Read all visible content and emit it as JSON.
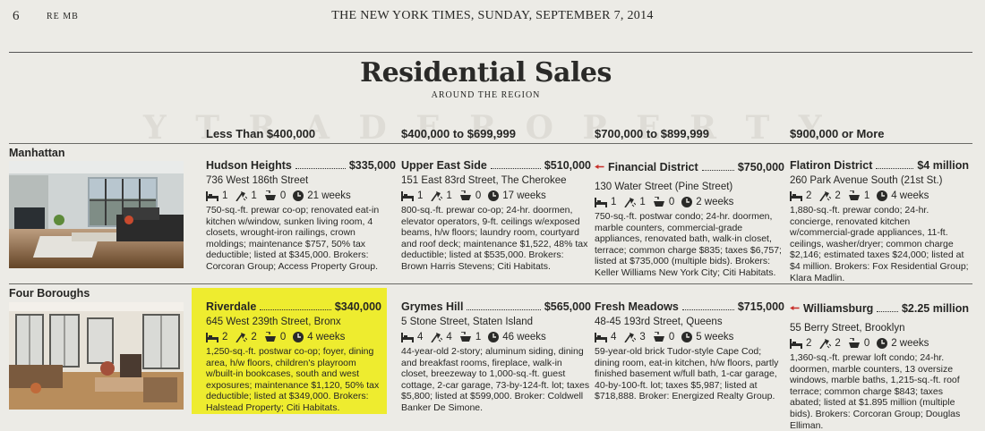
{
  "masthead": {
    "page_number": "6",
    "edition": "RE  MB",
    "dateline": "THE NEW YORK TIMES, SUNDAY, SEPTEMBER 7, 2014"
  },
  "section": {
    "title": "Residential Sales",
    "subtitle": "AROUND THE REGION",
    "watermark": "Y  T  R  A  D  E  R  O  P  E  R  T  Y"
  },
  "columns": [
    "Less Than $400,000",
    "$400,000 to $699,999",
    "$700,000 to $899,999",
    "$900,000 or More"
  ],
  "colors": {
    "highlight": "#eeec2f",
    "arrow": "#c8302a"
  },
  "regions": [
    {
      "name": "Manhattan",
      "listings": [
        {
          "neighborhood": "Hudson Heights",
          "price": "$335,000",
          "address": "736 West 186th Street",
          "beds": "1",
          "baths": "1",
          "half_baths": "0",
          "weeks": "21 weeks",
          "description": "750-sq.-ft. prewar co-op; renovated eat-in kitchen w/window, sunken living room, 4 closets, wrought-iron railings, crown moldings; maintenance $757, 50% tax deductible; listed at $345,000. Brokers: Corcoran Group; Access Property Group."
        },
        {
          "neighborhood": "Upper East Side",
          "price": "$510,000",
          "address": "151 East 83rd Street, The Cherokee",
          "beds": "1",
          "baths": "1",
          "half_baths": "0",
          "weeks": "17 weeks",
          "description": "800-sq.-ft. prewar co-op; 24-hr. doormen, elevator operators, 9-ft. ceilings w/exposed beams, h/w floors; laundry room, courtyard and roof deck; maintenance $1,522, 48% tax deductible; listed at $535,000. Brokers: Brown Harris Stevens; Citi Habitats."
        },
        {
          "neighborhood": "Financial District",
          "price": "$750,000",
          "address": "130 Water Street (Pine Street)",
          "beds": "1",
          "baths": "1",
          "half_baths": "0",
          "weeks": "2 weeks",
          "description": "750-sq.-ft. postwar condo; 24-hr. doormen, marble counters, commercial-grade appliances, renovated bath, walk-in closet, terrace; common charge $835; taxes $6,757; listed at $735,000 (multiple bids). Brokers: Keller Williams New York City; Citi Habitats."
        },
        {
          "neighborhood": "Flatiron District",
          "price": "$4 million",
          "address": "260 Park Avenue South (21st St.)",
          "beds": "2",
          "baths": "2",
          "half_baths": "1",
          "weeks": "4 weeks",
          "description": "1,880-sq.-ft. prewar condo; 24-hr. concierge, renovated kitchen w/commercial-grade appliances, 11-ft. ceilings, washer/dryer; common charge $2,146; estimated taxes $24,000; listed at $4 million. Brokers: Fox Residential Group; Klara Madlin."
        }
      ]
    },
    {
      "name": "Four Boroughs",
      "listings": [
        {
          "neighborhood": "Riverdale",
          "price": "$340,000",
          "address": "645 West 239th Street, Bronx",
          "beds": "2",
          "baths": "2",
          "half_baths": "0",
          "weeks": "4 weeks",
          "description": "1,250-sq.-ft. postwar co-op; foyer, dining area, h/w floors, children's playroom w/built-in bookcases, south and west exposures; maintenance $1,120, 50% tax deductible; listed at $349,000. Brokers: Halstead Property; Citi Habitats."
        },
        {
          "neighborhood": "Grymes Hill",
          "price": "$565,000",
          "address": "5 Stone Street, Staten Island",
          "beds": "4",
          "baths": "4",
          "half_baths": "1",
          "weeks": "46 weeks",
          "description": "44-year-old 2-story; aluminum siding, dining and breakfast rooms, fireplace, walk-in closet, breezeway to 1,000-sq.-ft. guest cottage, 2-car garage, 73-by-124-ft. lot; taxes $5,800; listed at $599,000. Broker: Coldwell Banker De Simone."
        },
        {
          "neighborhood": "Fresh Meadows",
          "price": "$715,000",
          "address": "48-45 193rd Street, Queens",
          "beds": "4",
          "baths": "3",
          "half_baths": "0",
          "weeks": "5 weeks",
          "description": "59-year-old brick Tudor-style Cape Cod; dining room, eat-in kitchen, h/w floors, partly finished basement w/full bath, 1-car garage, 40-by-100-ft. lot; taxes $5,987; listed at $718,888. Broker: Energized Realty Group."
        },
        {
          "neighborhood": "Williamsburg",
          "price": "$2.25 million",
          "address": "55 Berry Street, Brooklyn",
          "beds": "2",
          "baths": "2",
          "half_baths": "0",
          "weeks": "2 weeks",
          "description": "1,360-sq.-ft. prewar loft condo; 24-hr. doormen, marble counters, 13 oversize windows, marble baths, 1,215-sq.-ft. roof terrace; common charge $843; taxes abated; listed at $1.895 million (multiple bids). Brokers: Corcoran Group; Douglas Elliman."
        }
      ]
    }
  ]
}
